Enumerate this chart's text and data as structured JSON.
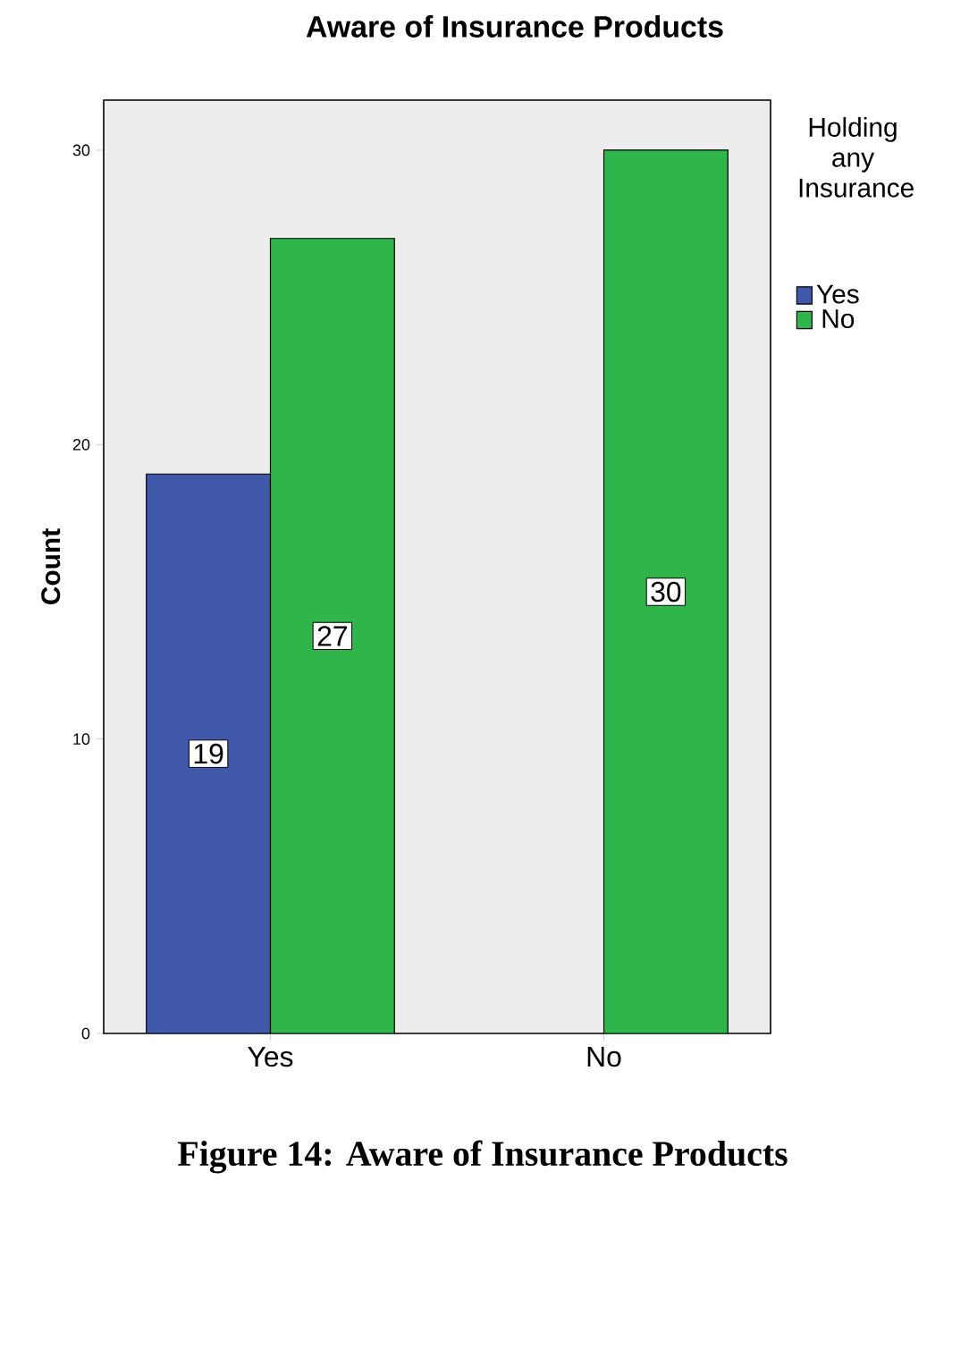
{
  "chart_data": {
    "type": "bar",
    "title": "Aware of Insurance Products",
    "ylabel": "Count",
    "legend_title": "Holding any Insurance",
    "categories": [
      "Yes",
      "No"
    ],
    "series": [
      {
        "name": "Yes",
        "color": "#3f58aa",
        "values": [
          19,
          null
        ]
      },
      {
        "name": "No",
        "color": "#2fb64a",
        "values": [
          27,
          30
        ]
      }
    ],
    "ylim": [
      0,
      31.7
    ],
    "yticks": [
      0,
      10,
      20,
      30
    ],
    "grid": false,
    "legend": "right",
    "data_labels": true,
    "annotations": [
      "**Figure 14: Aware of Insurance Products**"
    ]
  }
}
